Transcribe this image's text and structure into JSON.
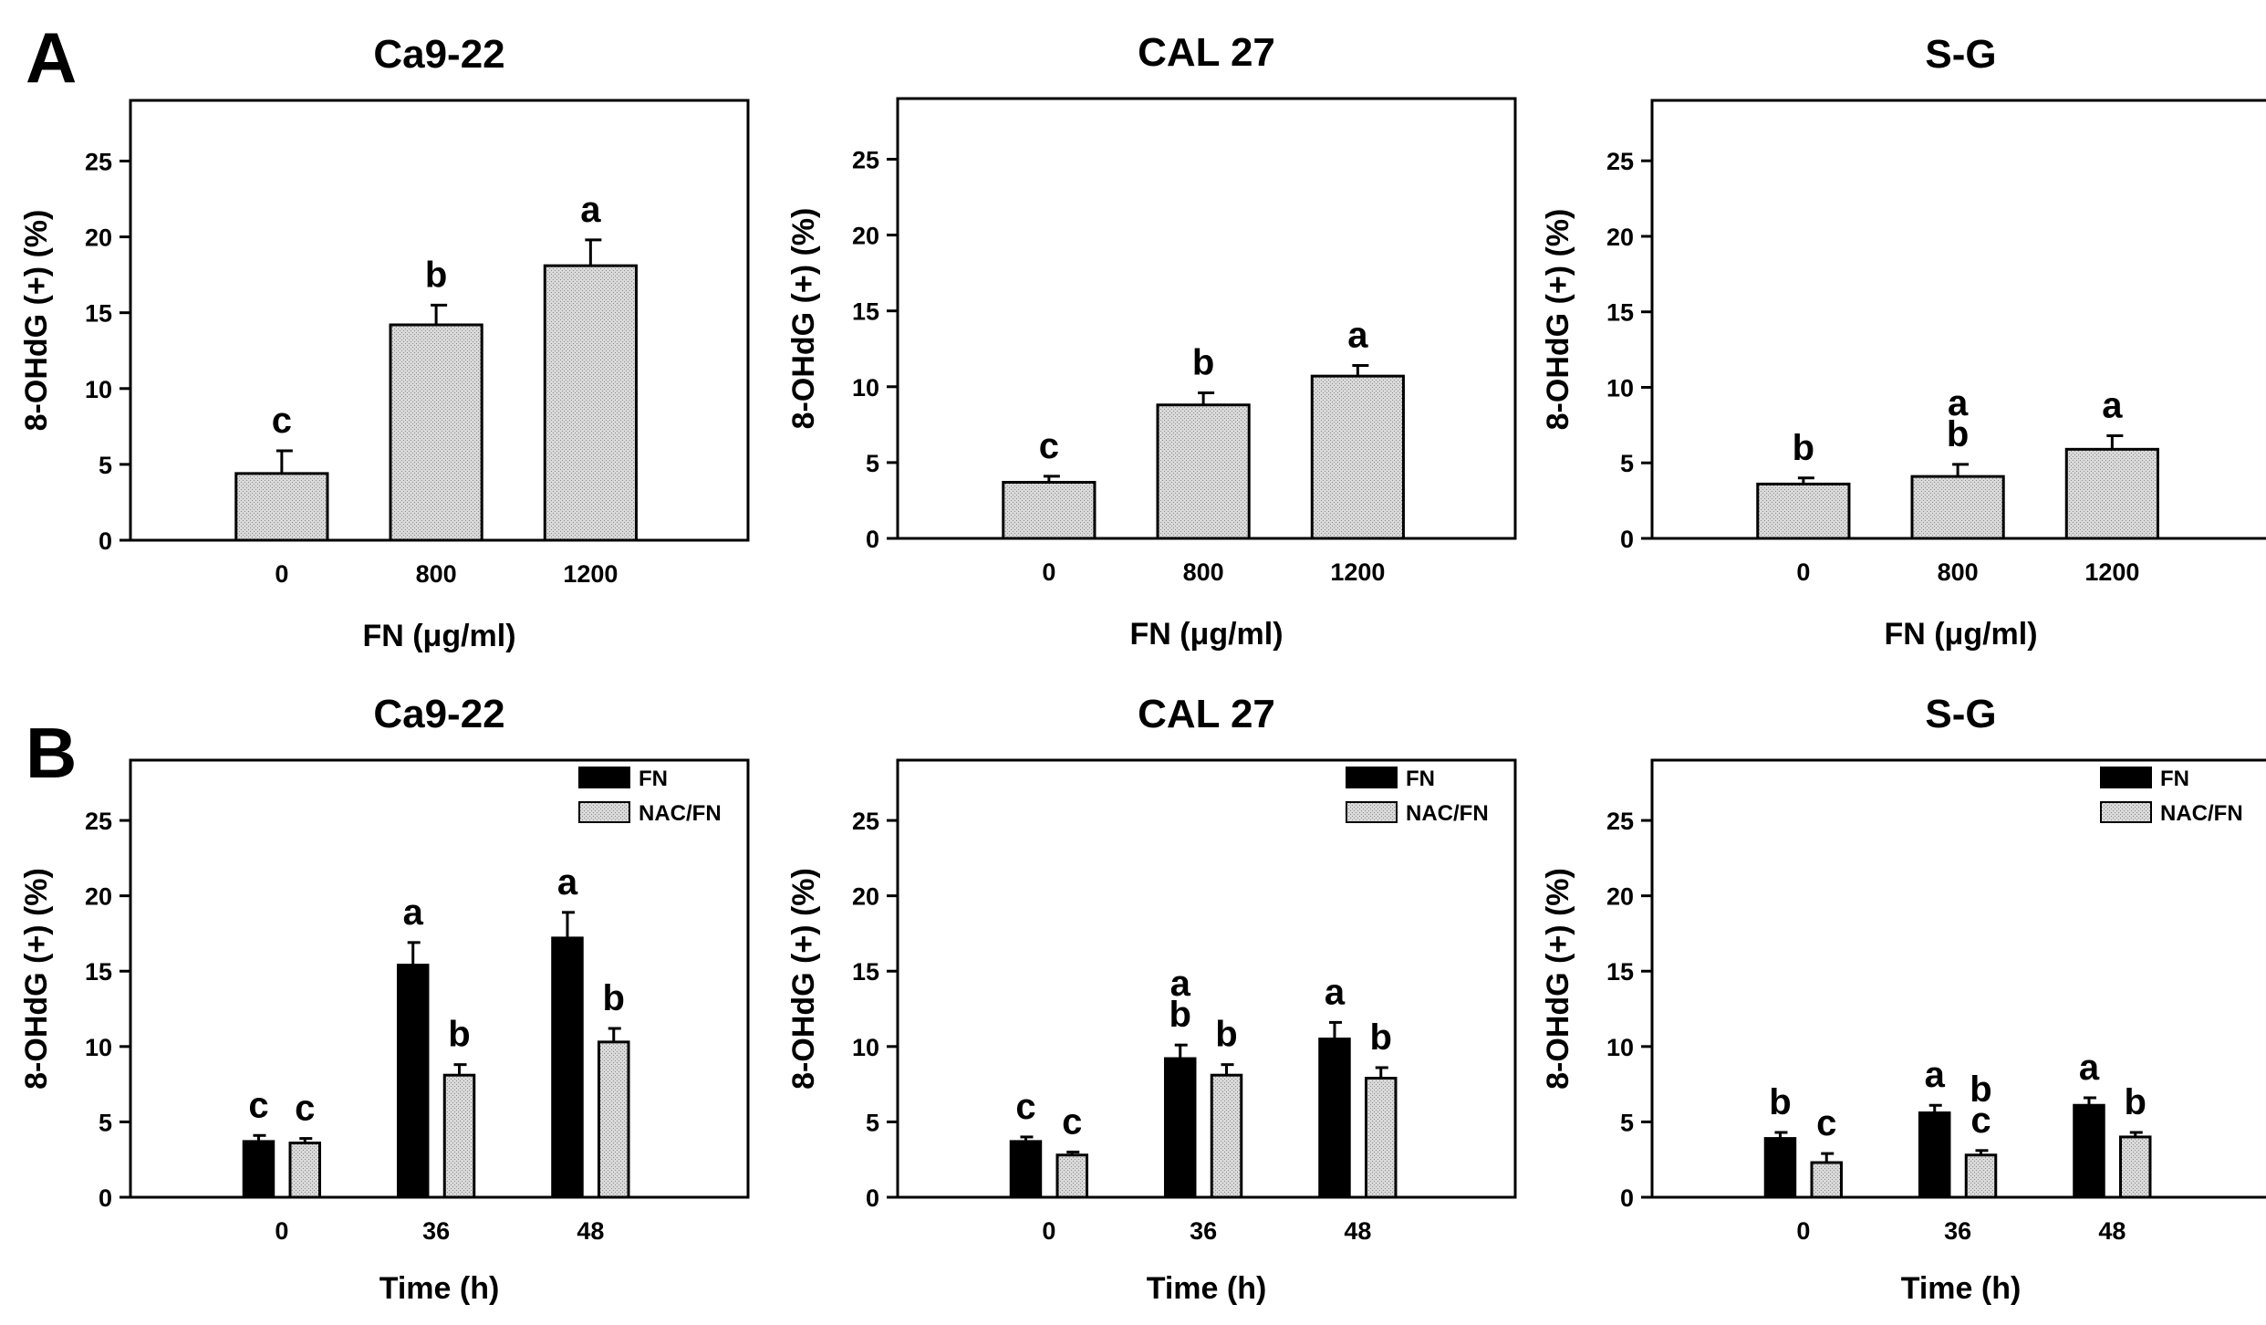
{
  "figure": {
    "panel_letters": [
      "A",
      "B"
    ],
    "colors": {
      "fn": "#000000",
      "nac_fn": "#d9d9d9",
      "single": "#d9d9d9",
      "stroke": "#000000",
      "background": "#ffffff"
    }
  },
  "chart_data": [
    {
      "type": "bar",
      "panel": "A",
      "title": "Ca9-22",
      "xlabel": "FN (μg/ml)",
      "ylabel": "8-OHdG (+) (%)",
      "ylim": [
        0,
        29
      ],
      "yticks": [
        0,
        5,
        10,
        15,
        20,
        25
      ],
      "categories": [
        "0",
        "800",
        "1200"
      ],
      "series": [
        {
          "name": "",
          "values": [
            4.4,
            14.2,
            18.1
          ],
          "errors": [
            1.5,
            1.3,
            1.7
          ],
          "letters": [
            "c",
            "b",
            "a"
          ]
        }
      ]
    },
    {
      "type": "bar",
      "panel": "A",
      "title": "CAL 27",
      "xlabel": "FN (μg/ml)",
      "ylabel": "8-OHdG (+) (%)",
      "ylim": [
        0,
        29
      ],
      "yticks": [
        0,
        5,
        10,
        15,
        20,
        25
      ],
      "categories": [
        "0",
        "800",
        "1200"
      ],
      "series": [
        {
          "name": "",
          "values": [
            3.7,
            8.8,
            10.7
          ],
          "errors": [
            0.4,
            0.8,
            0.7
          ],
          "letters": [
            "c",
            "b",
            "a"
          ]
        }
      ]
    },
    {
      "type": "bar",
      "panel": "A",
      "title": "S-G",
      "xlabel": "FN (μg/ml)",
      "ylabel": "8-OHdG (+) (%)",
      "ylim": [
        0,
        29
      ],
      "yticks": [
        0,
        5,
        10,
        15,
        20,
        25
      ],
      "categories": [
        "0",
        "800",
        "1200"
      ],
      "series": [
        {
          "name": "",
          "values": [
            3.6,
            4.1,
            5.9
          ],
          "errors": [
            0.4,
            0.8,
            0.9
          ],
          "letters": [
            "b",
            "a\nb",
            "a"
          ]
        }
      ]
    },
    {
      "type": "bar",
      "panel": "B",
      "title": "Ca9-22",
      "xlabel": "Time (h)",
      "ylabel": "8-OHdG (+) (%)",
      "ylim": [
        0,
        29
      ],
      "yticks": [
        0,
        5,
        10,
        15,
        20,
        25
      ],
      "categories": [
        "0",
        "36",
        "48"
      ],
      "legend": [
        "FN",
        "NAC/FN"
      ],
      "series": [
        {
          "name": "FN",
          "values": [
            3.7,
            15.4,
            17.2
          ],
          "errors": [
            0.4,
            1.5,
            1.7
          ],
          "letters": [
            "c",
            "a",
            "a"
          ]
        },
        {
          "name": "NAC/FN",
          "values": [
            3.6,
            8.1,
            10.3
          ],
          "errors": [
            0.3,
            0.7,
            0.9
          ],
          "letters": [
            "c",
            "b",
            "b"
          ]
        }
      ]
    },
    {
      "type": "bar",
      "panel": "B",
      "title": "CAL 27",
      "xlabel": "Time (h)",
      "ylabel": "8-OHdG (+) (%)",
      "ylim": [
        0,
        29
      ],
      "yticks": [
        0,
        5,
        10,
        15,
        20,
        25
      ],
      "categories": [
        "0",
        "36",
        "48"
      ],
      "legend": [
        "FN",
        "NAC/FN"
      ],
      "series": [
        {
          "name": "FN",
          "values": [
            3.7,
            9.2,
            10.5
          ],
          "errors": [
            0.3,
            0.9,
            1.1
          ],
          "letters": [
            "c",
            "a\nb",
            "a"
          ]
        },
        {
          "name": "NAC/FN",
          "values": [
            2.8,
            8.1,
            7.9
          ],
          "errors": [
            0.2,
            0.7,
            0.7
          ],
          "letters": [
            "c",
            "b",
            "b"
          ]
        }
      ]
    },
    {
      "type": "bar",
      "panel": "B",
      "title": "S-G",
      "xlabel": "Time (h)",
      "ylabel": "8-OHdG (+) (%)",
      "ylim": [
        0,
        29
      ],
      "yticks": [
        0,
        5,
        10,
        15,
        20,
        25
      ],
      "categories": [
        "0",
        "36",
        "48"
      ],
      "legend": [
        "FN",
        "NAC/FN"
      ],
      "series": [
        {
          "name": "FN",
          "values": [
            3.9,
            5.6,
            6.1
          ],
          "errors": [
            0.4,
            0.5,
            0.5
          ],
          "letters": [
            "b",
            "a",
            "a"
          ]
        },
        {
          "name": "NAC/FN",
          "values": [
            2.3,
            2.8,
            4.0
          ],
          "errors": [
            0.6,
            0.3,
            0.3
          ],
          "letters": [
            "c",
            "b\nc",
            "b"
          ]
        }
      ]
    }
  ]
}
